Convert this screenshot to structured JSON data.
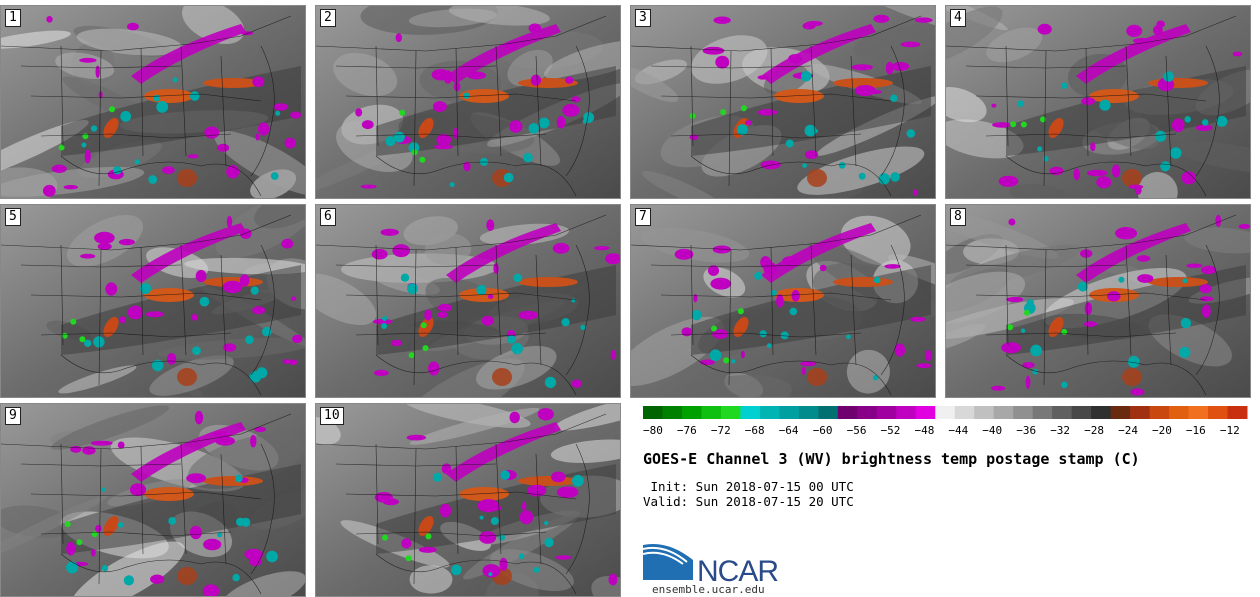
{
  "panels": [
    {
      "label": "1"
    },
    {
      "label": "2"
    },
    {
      "label": "3"
    },
    {
      "label": "4"
    },
    {
      "label": "5"
    },
    {
      "label": "6"
    },
    {
      "label": "7"
    },
    {
      "label": "8"
    },
    {
      "label": "9"
    },
    {
      "label": "10"
    }
  ],
  "colorbar": {
    "colors": [
      "#006400",
      "#008000",
      "#00a000",
      "#10c010",
      "#20d820",
      "#00d0d0",
      "#00b4b4",
      "#00a0a0",
      "#008c8c",
      "#007070",
      "#700070",
      "#880088",
      "#a000a0",
      "#c000c0",
      "#e000e0",
      "#f0f0f0",
      "#d8d8d8",
      "#c0c0c0",
      "#a8a8a8",
      "#909090",
      "#787878",
      "#606060",
      "#484848",
      "#303030",
      "#6a2a10",
      "#a03010",
      "#c84810",
      "#e06010",
      "#f07020",
      "#e05010",
      "#c83010"
    ],
    "tick_labels": [
      "−80",
      "−76",
      "−72",
      "−68",
      "−64",
      "−60",
      "−56",
      "−52",
      "−48",
      "−44",
      "−40",
      "−36",
      "−32",
      "−28",
      "−24",
      "−20",
      "−16",
      "−12"
    ]
  },
  "title": "GOES-E Channel 3 (WV) brightness temp postage stamp (C)",
  "init_line": " Init: Sun 2018-07-15 00 UTC",
  "valid_line": "Valid: Sun 2018-07-15 20 UTC",
  "logo_text": "NCAR",
  "url": "ensemble.ucar.edu"
}
